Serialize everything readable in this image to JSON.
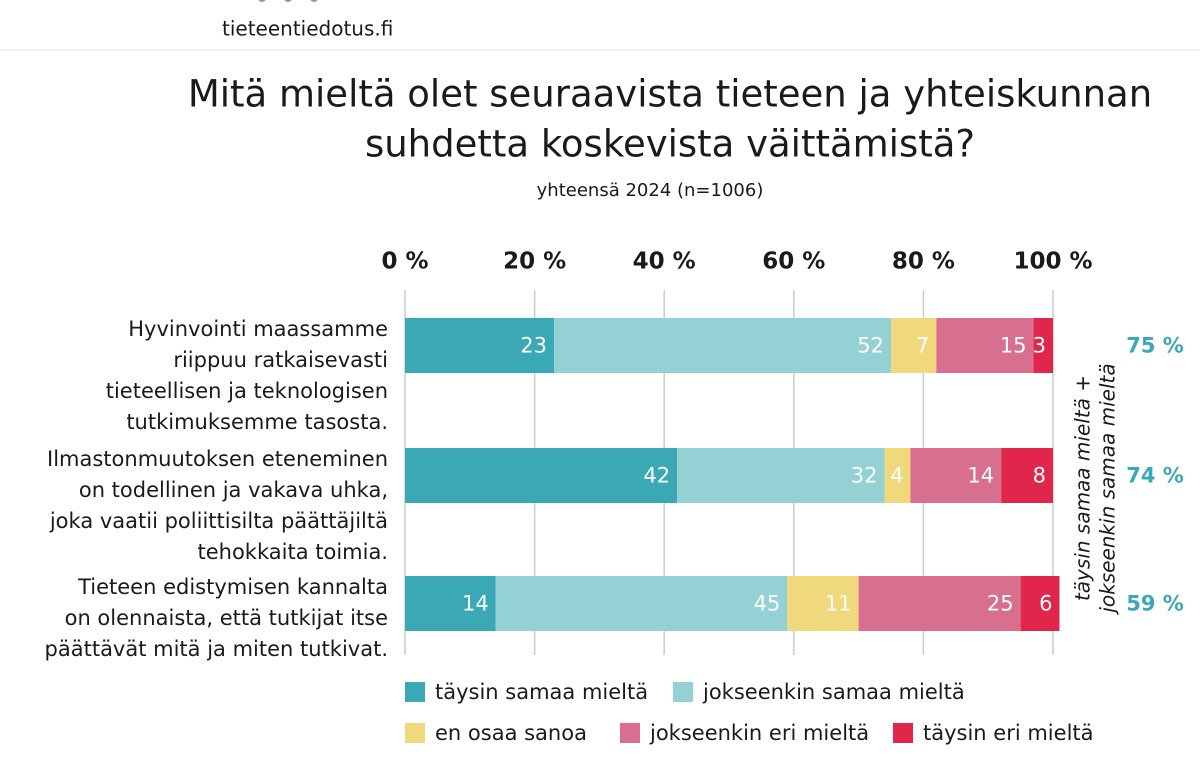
{
  "site": "tieteentiedotus.fi",
  "chart_data": {
    "type": "stacked-barh",
    "title": [
      "Mitä mieltä olet seuraavista tieteen ja yhteiskunnan",
      "suhdetta koskevista väittämistä?"
    ],
    "subtitle": "yhteensä 2024 (n=1006)",
    "categories": [
      [
        "Hyvinvointi maassamme",
        "riippuu ratkaisevasti",
        "tieteellisen ja teknologisen",
        "tutkimuksemme tasosta."
      ],
      [
        "Ilmastonmuutoksen eteneminen",
        "on todellinen ja vakava uhka,",
        "joka vaatii poliittisilta päättäjiltä",
        "tehokkaita toimia."
      ],
      [
        "Tieteen edistymisen kannalta",
        "on olennaista, että tutkijat itse",
        "päättävät mitä ja miten tutkivat."
      ]
    ],
    "series": [
      {
        "name": "täysin samaa mieltä",
        "color": "#3aa9b5",
        "values": [
          23,
          42,
          14
        ]
      },
      {
        "name": "jokseenkin samaa mieltä",
        "color": "#94d1d4",
        "values": [
          52,
          32,
          45
        ]
      },
      {
        "name": "en osaa sanoa",
        "color": "#f0d87c",
        "values": [
          7,
          4,
          11
        ]
      },
      {
        "name": "jokseenkin eri mieltä",
        "color": "#d96f8e",
        "values": [
          15,
          14,
          25
        ]
      },
      {
        "name": "täysin eri mieltä",
        "color": "#e0264a",
        "values": [
          3,
          8,
          6
        ]
      }
    ],
    "xlim": [
      0,
      100
    ],
    "xticks": [
      {
        "value": 0,
        "label": "0 %"
      },
      {
        "value": 20,
        "label": "20 %"
      },
      {
        "value": 40,
        "label": "40 %"
      },
      {
        "value": 60,
        "label": "60 %"
      },
      {
        "value": 80,
        "label": "80 %"
      },
      {
        "value": 100,
        "label": "100 %"
      }
    ],
    "grid": true,
    "totals": {
      "label": [
        "täysin samaa mieltä +",
        "jokseenkin samaa mieltä"
      ],
      "values": [
        75,
        74,
        59
      ],
      "value_labels": [
        "75 %",
        "74 %",
        "59 %"
      ],
      "color": "#3aa9b5"
    }
  }
}
